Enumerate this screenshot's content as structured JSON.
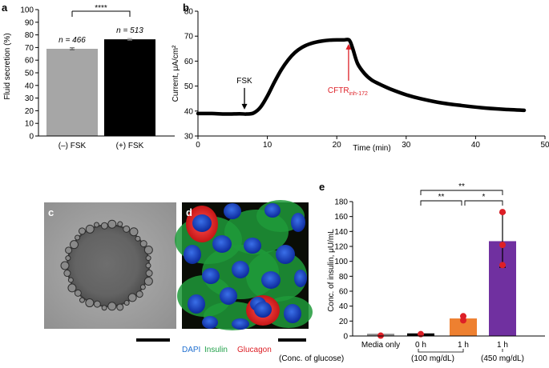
{
  "colors": {
    "bar_minus": "#a6a6a6",
    "bar_plus": "#000000",
    "trace": "#000000",
    "red": "#dd1f26",
    "media_bar": "#8c8c8c",
    "h0_bar": "#000000",
    "h1_100_bar": "#ee8030",
    "h1_450_bar": "#7030a0",
    "dapi": "#1f6fd0",
    "insulin": "#21a14a",
    "glucagon": "#dd1f26"
  },
  "panel_letters": {
    "a": "a",
    "b": "b",
    "c": "c",
    "d": "d",
    "e": "e"
  },
  "chart_data": [
    {
      "type": "bar",
      "panel": "a",
      "categories": [
        "(–) FSK",
        "(+) FSK"
      ],
      "values": [
        69,
        76.5
      ],
      "errors": [
        0.8,
        0.6
      ],
      "n_labels": [
        "n = 466",
        "n = 513"
      ],
      "ylabel": "Fluid secretion (%)",
      "ylim": [
        0,
        100
      ],
      "yticks": [
        0,
        10,
        20,
        30,
        40,
        50,
        60,
        70,
        80,
        90,
        100
      ],
      "significance": "****"
    },
    {
      "type": "line",
      "panel": "b",
      "x": [
        0,
        2,
        4,
        6,
        7,
        8,
        9,
        10,
        11,
        12,
        13,
        14,
        15,
        16,
        17,
        18,
        19,
        20,
        21,
        21.8,
        22.3,
        23,
        24,
        25,
        26,
        27,
        28,
        30,
        32,
        35,
        38,
        41,
        44,
        47
      ],
      "y": [
        39,
        39,
        38.8,
        38.9,
        38.8,
        39.2,
        41.5,
        46,
        51.5,
        56.5,
        60.5,
        63.5,
        65.5,
        66.8,
        67.6,
        68.1,
        68.4,
        68.5,
        68.5,
        68.4,
        65,
        59,
        55,
        52.5,
        51,
        49.7,
        48.5,
        46.5,
        45,
        43.3,
        42.2,
        41.3,
        40.7,
        40.3
      ],
      "xlabel": "Time (min)",
      "ylabel": "Current, μA/cm²",
      "xlim": [
        0,
        50
      ],
      "ylim": [
        30,
        80
      ],
      "xticks": [
        0,
        10,
        20,
        30,
        40,
        50
      ],
      "yticks": [
        30,
        40,
        50,
        60,
        70,
        80
      ],
      "annotations": [
        {
          "text": "FSK",
          "x": 6.7,
          "y": 39,
          "color": "#000000"
        },
        {
          "text": "CFTR",
          "sub": "inh-172",
          "x": 21.7,
          "y": 68.5,
          "color": "#dd1f26"
        }
      ]
    },
    {
      "type": "bar",
      "panel": "e",
      "categories": [
        "Media only",
        "0 h",
        "1 h",
        "1 h"
      ],
      "group_labels": [
        "(Conc. of glucose)",
        "(100 mg/dL)",
        "(450 mg/dL)"
      ],
      "values": [
        3,
        3.5,
        23.5,
        127
      ],
      "err_lower": [
        0,
        0,
        0,
        35
      ],
      "err_upper": [
        0,
        0,
        0,
        38
      ],
      "points": [
        [
          0.5
        ],
        [
          2.5
        ],
        [
          21,
          26.5
        ],
        [
          166,
          122,
          95
        ]
      ],
      "ylabel": "Conc. of insulin, μU/mL",
      "ylim": [
        0,
        180
      ],
      "yticks": [
        0,
        20,
        40,
        60,
        80,
        100,
        120,
        140,
        160,
        180
      ],
      "significance": [
        {
          "from": 1,
          "to": 3,
          "label": "**"
        },
        {
          "from": 1,
          "to": 2,
          "label": "**"
        },
        {
          "from": 2,
          "to": 3,
          "label": "*"
        }
      ]
    }
  ],
  "panel_d_legend": {
    "dapi": "DAPI",
    "insulin": "Insulin",
    "glucagon": "Glucagon"
  }
}
